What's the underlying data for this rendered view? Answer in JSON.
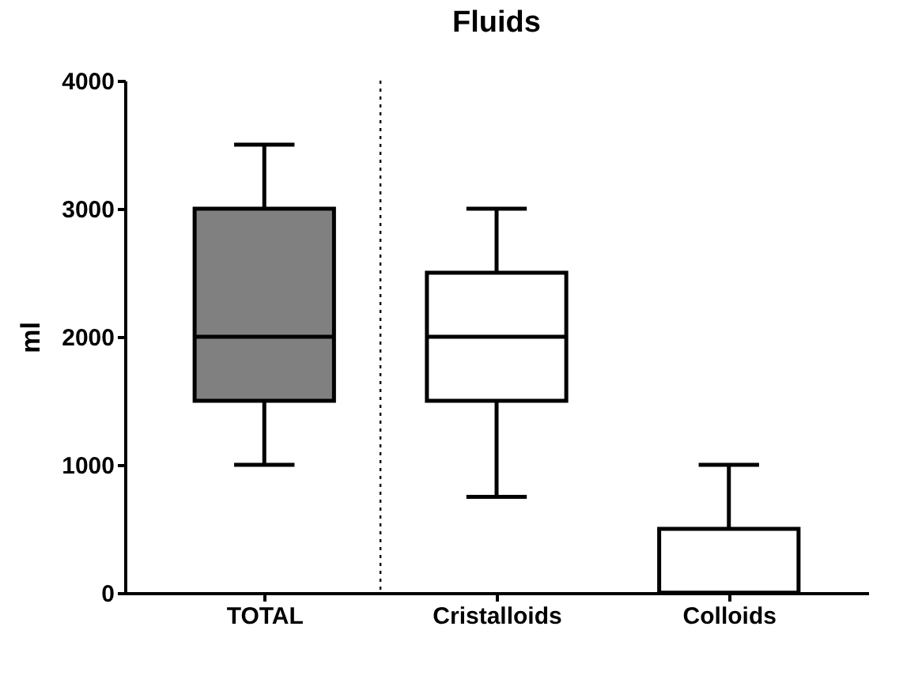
{
  "chart_data": {
    "type": "box",
    "title": "Fluids",
    "ylabel": "ml",
    "categories": [
      "TOTAL",
      "Cristalloids",
      "Colloids"
    ],
    "boxes": [
      {
        "low": 1000,
        "q1": 1500,
        "median": 2000,
        "q3": 3000,
        "high": 3500
      },
      {
        "low": 750,
        "q1": 1500,
        "median": 2000,
        "q3": 2500,
        "high": 3000
      },
      {
        "low": 0,
        "q1": 0,
        "median": 0,
        "q3": 500,
        "high": 1000
      }
    ],
    "colors": [
      "#808080",
      "#ffffff",
      "#ffffff"
    ],
    "ylim": [
      0,
      4000
    ],
    "yticks": [
      0,
      1000,
      2000,
      3000,
      4000
    ],
    "grid": false
  }
}
